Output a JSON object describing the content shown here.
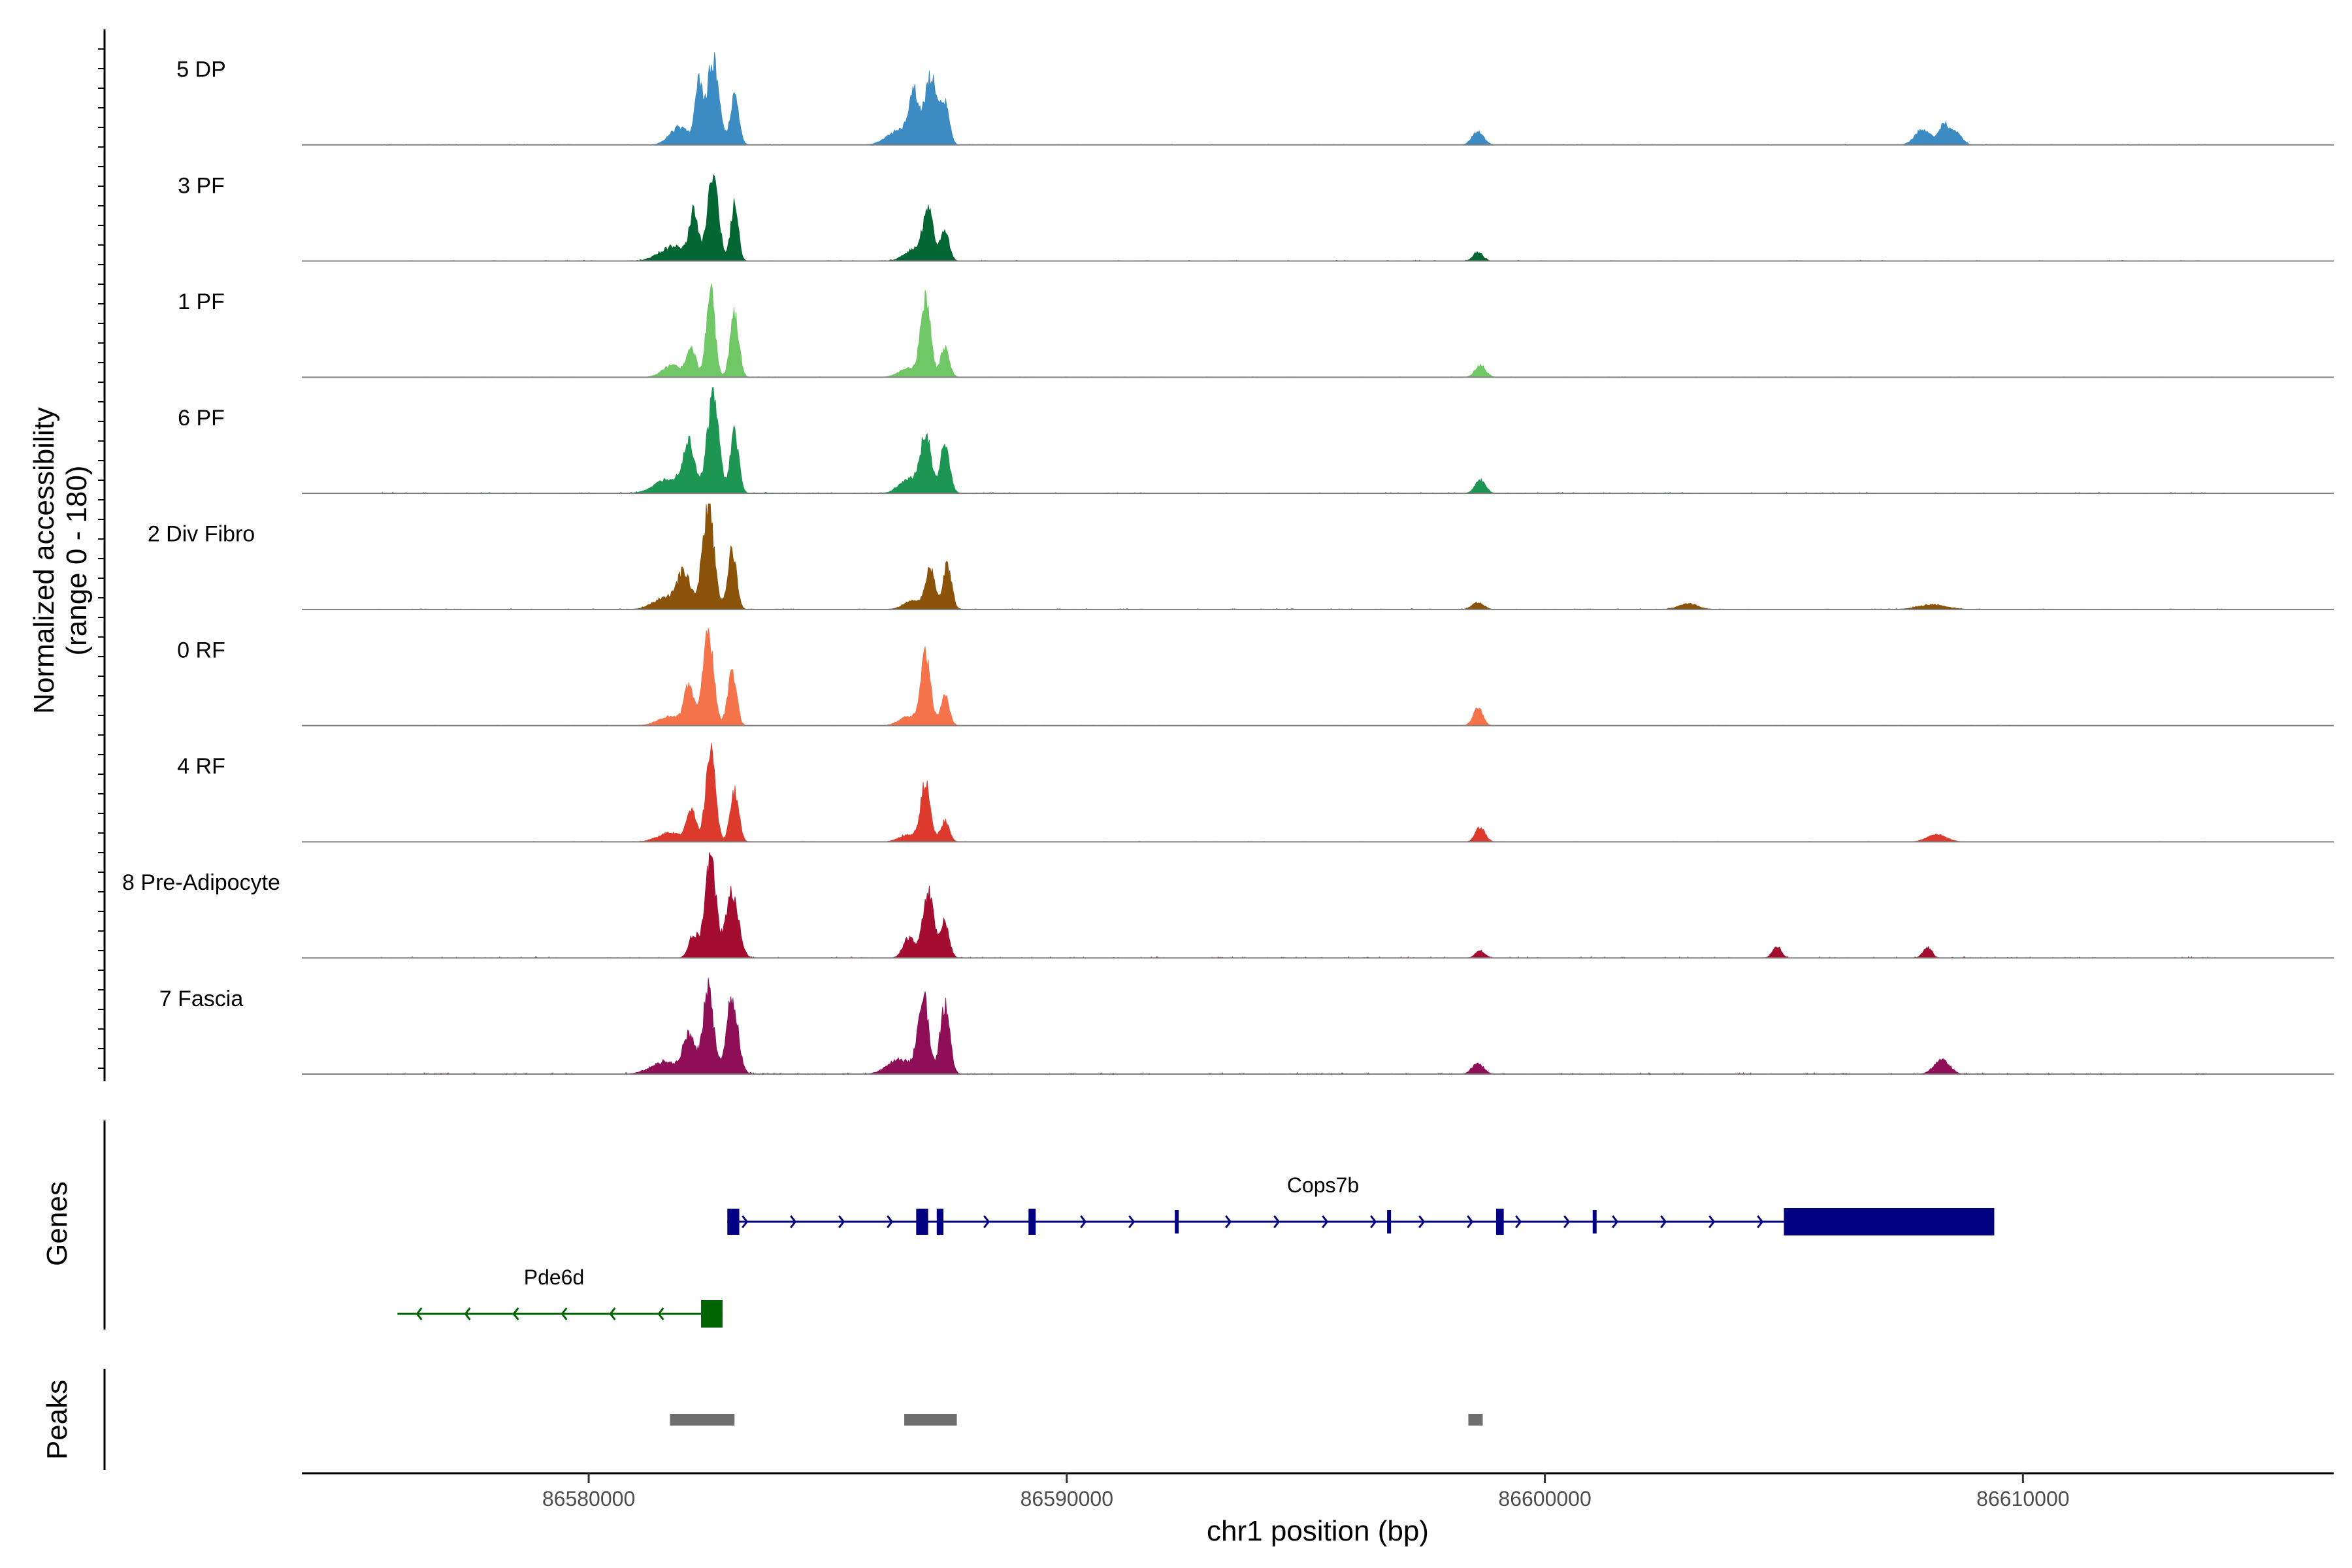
{
  "chart_data": {
    "type": "coverage",
    "chromosome": "chr1",
    "region": [
      86574000,
      86616500
    ],
    "coverage": {
      "ylabel": "Normalized accessibility",
      "ylabel_range": "(range 0 - 180)",
      "ylim": [
        0,
        180
      ],
      "tracks": [
        {
          "name": "5 DP",
          "color": "#3C8CC3",
          "peaks": [
            [
              86582600,
              145,
              120
            ],
            [
              86583050,
              80,
              90
            ],
            [
              86582300,
              95,
              80
            ],
            [
              86581900,
              30,
              200
            ],
            [
              86587150,
              115,
              120
            ],
            [
              86586800,
              80,
              100
            ],
            [
              86587450,
              70,
              90
            ],
            [
              86586500,
              25,
              250
            ],
            [
              86598600,
              22,
              120
            ],
            [
              86607900,
              26,
              160
            ],
            [
              86608350,
              32,
              120
            ],
            [
              86608600,
              20,
              120
            ]
          ],
          "noise": 3
        },
        {
          "name": "3 PF",
          "color": "#036633",
          "peaks": [
            [
              86582600,
              155,
              110
            ],
            [
              86583050,
              95,
              80
            ],
            [
              86582200,
              75,
              90
            ],
            [
              86581800,
              25,
              300
            ],
            [
              86587100,
              80,
              110
            ],
            [
              86587450,
              50,
              90
            ],
            [
              86586800,
              20,
              200
            ],
            [
              86598600,
              15,
              100
            ]
          ],
          "noise": 3
        },
        {
          "name": "1 PF",
          "color": "#6FC765",
          "peaks": [
            [
              86582550,
              145,
              90
            ],
            [
              86583050,
              105,
              90
            ],
            [
              86582150,
              45,
              100
            ],
            [
              86581750,
              20,
              200
            ],
            [
              86587050,
              135,
              100
            ],
            [
              86587450,
              50,
              90
            ],
            [
              86586700,
              15,
              200
            ],
            [
              86598650,
              20,
              110
            ]
          ],
          "noise": 2
        },
        {
          "name": "6 PF",
          "color": "#1E9653",
          "peaks": [
            [
              86582600,
              165,
              120
            ],
            [
              86583050,
              100,
              90
            ],
            [
              86582100,
              80,
              120
            ],
            [
              86581700,
              25,
              300
            ],
            [
              86587050,
              95,
              110
            ],
            [
              86587450,
              80,
              100
            ],
            [
              86586700,
              25,
              200
            ],
            [
              86598650,
              22,
              110
            ]
          ],
          "noise": 4
        },
        {
          "name": "2 Div Fibro",
          "color": "#8B520A",
          "peaks": [
            [
              86582500,
              175,
              120
            ],
            [
              86583000,
              100,
              90
            ],
            [
              86582000,
              60,
              140
            ],
            [
              86581600,
              20,
              250
            ],
            [
              86587150,
              65,
              100
            ],
            [
              86587500,
              75,
              90
            ],
            [
              86586800,
              15,
              200
            ],
            [
              86598600,
              12,
              120
            ],
            [
              86603000,
              10,
              200
            ],
            [
              86608100,
              8,
              300
            ]
          ],
          "noise": 3
        },
        {
          "name": "0 RF",
          "color": "#F4734A",
          "peaks": [
            [
              86582500,
              160,
              110
            ],
            [
              86583000,
              95,
              90
            ],
            [
              86582100,
              65,
              100
            ],
            [
              86581700,
              15,
              250
            ],
            [
              86587050,
              120,
              100
            ],
            [
              86587450,
              50,
              90
            ],
            [
              86586700,
              15,
              200
            ],
            [
              86598600,
              30,
              100
            ]
          ],
          "noise": 2
        },
        {
          "name": "4 RF",
          "color": "#DC3A2C",
          "peaks": [
            [
              86582550,
              155,
              100
            ],
            [
              86583050,
              85,
              90
            ],
            [
              86582150,
              50,
              100
            ],
            [
              86581700,
              15,
              250
            ],
            [
              86587050,
              100,
              100
            ],
            [
              86587450,
              35,
              90
            ],
            [
              86586700,
              12,
              200
            ],
            [
              86598650,
              25,
              100
            ],
            [
              86608200,
              12,
              200
            ]
          ],
          "noise": 2
        },
        {
          "name": "8 Pre-Adipocyte",
          "color": "#A40D2F",
          "peaks": [
            [
              86582550,
              170,
              110
            ],
            [
              86583000,
              110,
              130
            ],
            [
              86582200,
              40,
              100
            ],
            [
              86587100,
              115,
              110
            ],
            [
              86587450,
              60,
              90
            ],
            [
              86586700,
              35,
              120
            ],
            [
              86598650,
              12,
              100
            ],
            [
              86604850,
              20,
              90
            ],
            [
              86608000,
              18,
              90
            ]
          ],
          "noise": 4
        },
        {
          "name": "7 Fascia",
          "color": "#8E0E57",
          "peaks": [
            [
              86582500,
              145,
              110
            ],
            [
              86583000,
              130,
              120
            ],
            [
              86582100,
              65,
              120
            ],
            [
              86581600,
              20,
              300
            ],
            [
              86587000,
              130,
              110
            ],
            [
              86587450,
              115,
              100
            ],
            [
              86586500,
              25,
              250
            ],
            [
              86598600,
              18,
              120
            ],
            [
              86608300,
              25,
              160
            ]
          ],
          "noise": 5
        }
      ]
    },
    "genes": {
      "label": "Genes",
      "items": [
        {
          "name": "Cops7b",
          "strand": "+",
          "color": "#000080",
          "start": 86582900,
          "end": 86609400,
          "exons": [
            [
              86582900,
              86583150
            ],
            [
              86586850,
              86587100
            ],
            [
              86587280,
              86587420
            ],
            [
              86589200,
              86589350
            ],
            [
              86592260,
              86592320
            ],
            [
              86596700,
              86596780
            ],
            [
              86598980,
              86599140
            ],
            [
              86601000,
              86601070
            ],
            [
              86605000,
              86609400
            ]
          ]
        },
        {
          "name": "Pde6d",
          "strand": "-",
          "color": "#006400",
          "start": 86576000,
          "end": 86582800,
          "exons": [
            [
              86582350,
              86582800
            ]
          ]
        }
      ]
    },
    "peaks": {
      "label": "Peaks",
      "color": "#6E6E6E",
      "items": [
        [
          86581700,
          86583050
        ],
        [
          86586600,
          86587700
        ],
        [
          86598400,
          86598700
        ]
      ]
    },
    "xaxis": {
      "title": "chr1 position (bp)",
      "ticks": [
        86580000,
        86590000,
        86600000,
        86610000
      ],
      "tick_labels": [
        "86580000",
        "86590000",
        "86600000",
        "86610000"
      ]
    }
  }
}
